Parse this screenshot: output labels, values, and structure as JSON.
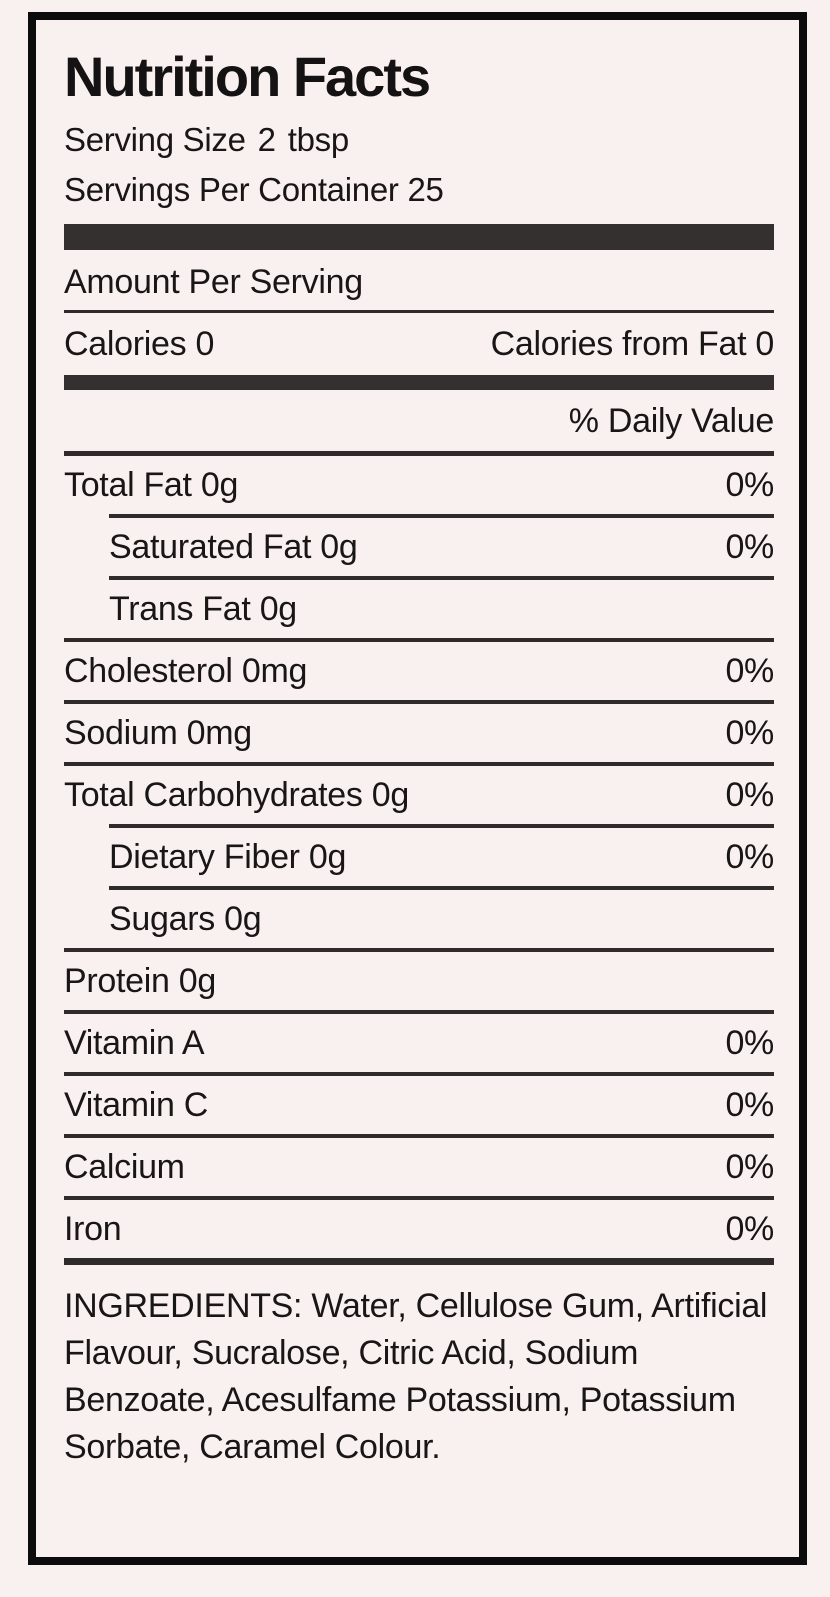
{
  "label": {
    "title": "Nutrition Facts",
    "serving_size": {
      "label": "Serving Size",
      "value": "2",
      "unit": "tbsp"
    },
    "servings_per_container": {
      "label": "Servings Per Container",
      "value": "25"
    },
    "amount_per_serving": "Amount Per Serving",
    "calories": {
      "label": "Calories",
      "value": "0"
    },
    "calories_from_fat": {
      "label": "Calories from Fat",
      "value": "0"
    },
    "daily_value_header": "% Daily Value",
    "rows": [
      {
        "name": "Total Fat",
        "amount": "0g",
        "dv": "0%"
      },
      {
        "name": "Saturated Fat",
        "amount": "0g",
        "dv": "0%"
      },
      {
        "name": "Trans Fat",
        "amount": "0g",
        "dv": ""
      },
      {
        "name": "Cholesterol",
        "amount": "0mg",
        "dv": "0%"
      },
      {
        "name": "Sodium",
        "amount": "0mg",
        "dv": "0%"
      },
      {
        "name": "Total Carbohydrates",
        "amount": "0g",
        "dv": "0%"
      },
      {
        "name": "Dietary Fiber",
        "amount": "0g",
        "dv": "0%"
      },
      {
        "name": "Sugars",
        "amount": "0g",
        "dv": ""
      },
      {
        "name": "Protein",
        "amount": "0g",
        "dv": ""
      },
      {
        "name": "Vitamin A",
        "amount": "",
        "dv": "0%"
      },
      {
        "name": "Vitamin C",
        "amount": "",
        "dv": "0%"
      },
      {
        "name": "Calcium",
        "amount": "",
        "dv": "0%"
      },
      {
        "name": "Iron",
        "amount": "",
        "dv": "0%"
      }
    ],
    "ingredients": "INGREDIENTS: Water, Cellulose Gum, Artificial Flavour, Sucralose, Citric Acid, Sodium Benzoate, Acesulfame Potassium, Potassium Sorbate, Caramel Colour."
  },
  "colors": {
    "background": "#f9f1f0",
    "border": "#0d0c0c",
    "bar": "#33302f",
    "rule": "#2e2b2a",
    "text": "#191616"
  }
}
